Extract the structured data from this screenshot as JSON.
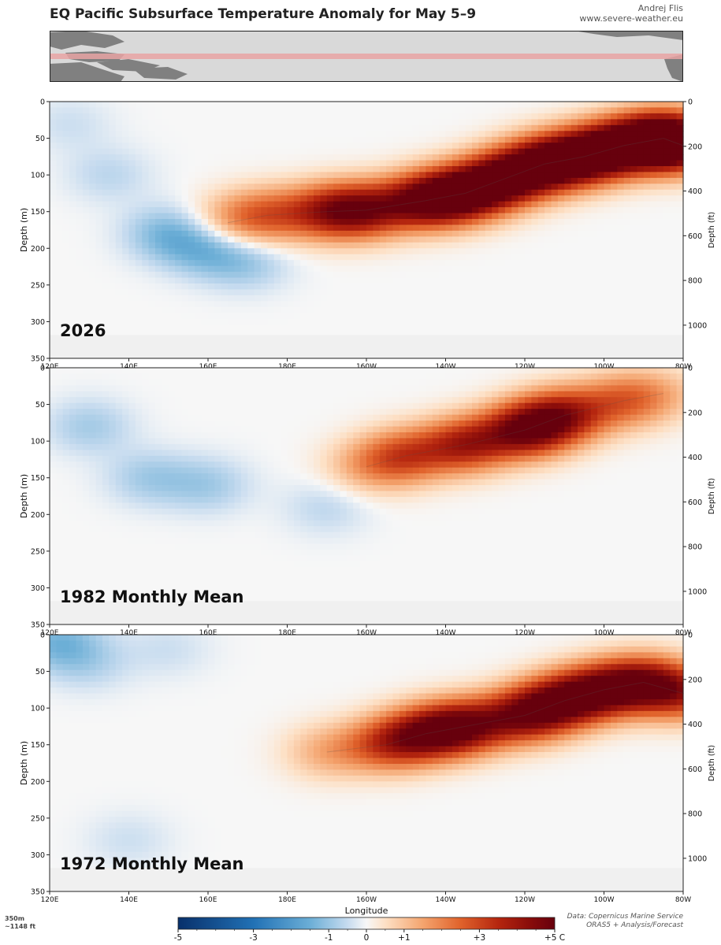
{
  "header": {
    "title": "EQ Pacific Subsurface Temperature Anomaly for May 5–9",
    "author": "Andrej Flis",
    "site": "www.severe-weather.eu"
  },
  "footnote": {
    "line1": "350m",
    "line2": "~1148 ft"
  },
  "source": {
    "line1": "Data: Copernicus Marine Service",
    "line2": "ORAS5 + Analysis/Forecast"
  },
  "colors": {
    "cold": "#08306b",
    "neutral": "#f7f7f7",
    "warm": "#67000d",
    "missing": "#f0f0f0",
    "land": "#808080",
    "ocean": "#d9d9d9",
    "band": "#e8a3a3"
  },
  "chart_data": {
    "type": "heatmap",
    "xlabel": "Longitude",
    "ylabel_left": "Depth (m)",
    "ylabel_right": "Depth (ft)",
    "x_ticks": [
      {
        "label": "120E",
        "lon": 120
      },
      {
        "label": "140E",
        "lon": 140
      },
      {
        "label": "160E",
        "lon": 160
      },
      {
        "label": "180E",
        "lon": 180
      },
      {
        "label": "160W",
        "lon": 200
      },
      {
        "label": "140W",
        "lon": 220
      },
      {
        "label": "120W",
        "lon": 240
      },
      {
        "label": "100W",
        "lon": 260
      },
      {
        "label": "80W",
        "lon": 280
      }
    ],
    "xlim": [
      120,
      280
    ],
    "ylim_m": [
      0,
      350
    ],
    "y_ticks_m": [
      "0",
      "50",
      "100",
      "150",
      "200",
      "250",
      "300",
      "350"
    ],
    "y_ticks_ft": [
      "0",
      "200",
      "400",
      "600",
      "800",
      "1000"
    ],
    "colorbar": {
      "label": "Longitude",
      "range": [
        -5,
        5
      ],
      "ticks": [
        {
          "label": "-5",
          "v": -5
        },
        {
          "label": "-3",
          "v": -3
        },
        {
          "label": "-1",
          "v": -1
        },
        {
          "label": "0",
          "v": 0
        },
        {
          "label": "+1",
          "v": 1
        },
        {
          "label": "+3",
          "v": 3
        },
        {
          "label": "+5 C",
          "v": 5
        }
      ]
    },
    "panels": [
      {
        "label": "2026",
        "warm_core": [
          [
            165,
            165,
            1.5
          ],
          [
            175,
            155,
            2.5
          ],
          [
            190,
            150,
            3.5
          ],
          [
            200,
            148,
            4.0
          ],
          [
            215,
            135,
            5.0
          ],
          [
            225,
            125,
            5.0
          ],
          [
            235,
            105,
            5.0
          ],
          [
            245,
            85,
            5.0
          ],
          [
            255,
            75,
            5.0
          ],
          [
            265,
            60,
            5.0
          ],
          [
            275,
            50,
            5.0
          ],
          [
            280,
            60,
            4.0
          ]
        ],
        "cold_core": [
          [
            125,
            30,
            -0.5
          ],
          [
            135,
            100,
            -0.7
          ],
          [
            150,
            180,
            -1.5
          ],
          [
            160,
            200,
            -1.5
          ],
          [
            170,
            220,
            -1.0
          ]
        ]
      },
      {
        "label": "1982 Monthly Mean",
        "warm_core": [
          [
            200,
            135,
            1.5
          ],
          [
            210,
            120,
            3.0
          ],
          [
            225,
            105,
            4.0
          ],
          [
            240,
            85,
            5.0
          ],
          [
            250,
            65,
            4.0
          ],
          [
            265,
            45,
            2.5
          ],
          [
            275,
            35,
            1.0
          ]
        ],
        "cold_core": [
          [
            130,
            80,
            -1.0
          ],
          [
            145,
            150,
            -1.0
          ],
          [
            160,
            160,
            -1.0
          ],
          [
            190,
            190,
            -0.7
          ]
        ]
      },
      {
        "label": "1972 Monthly Mean",
        "warm_core": [
          [
            190,
            160,
            1.5
          ],
          [
            205,
            150,
            3.0
          ],
          [
            215,
            135,
            4.0
          ],
          [
            225,
            125,
            4.5
          ],
          [
            240,
            110,
            4.5
          ],
          [
            250,
            90,
            4.5
          ],
          [
            260,
            75,
            4.0
          ],
          [
            270,
            65,
            4.0
          ],
          [
            280,
            80,
            3.5
          ]
        ],
        "cold_core": [
          [
            122,
            10,
            -1.5
          ],
          [
            130,
            40,
            -0.7
          ],
          [
            150,
            20,
            -0.5
          ],
          [
            140,
            280,
            -0.5
          ]
        ]
      }
    ]
  }
}
